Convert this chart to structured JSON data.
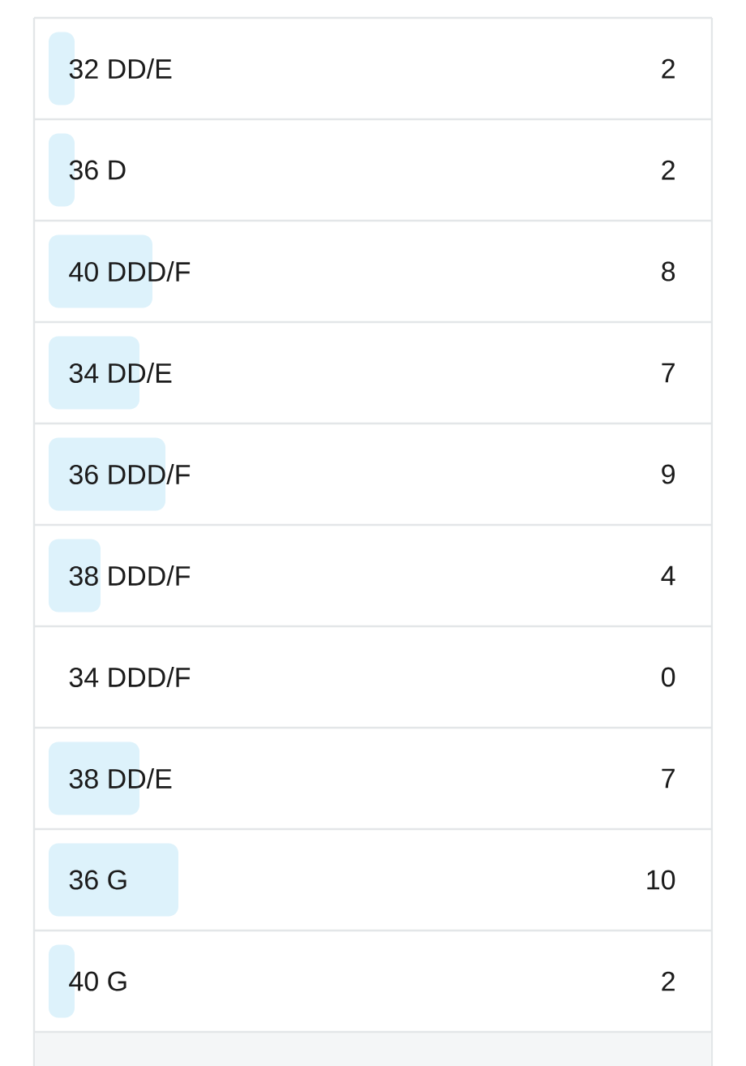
{
  "chart_data": {
    "type": "bar",
    "orientation": "horizontal",
    "categories": [
      "32 DD/E",
      "36 D",
      "40 DDD/F",
      "34 DD/E",
      "36 DDD/F",
      "38 DDD/F",
      "34 DDD/F",
      "38 DD/E",
      "36 G",
      "40 G"
    ],
    "values": [
      2,
      2,
      8,
      7,
      9,
      4,
      0,
      7,
      10,
      2
    ],
    "color": "#ddf2fb",
    "data_labels": true,
    "tick_labels": "y"
  }
}
